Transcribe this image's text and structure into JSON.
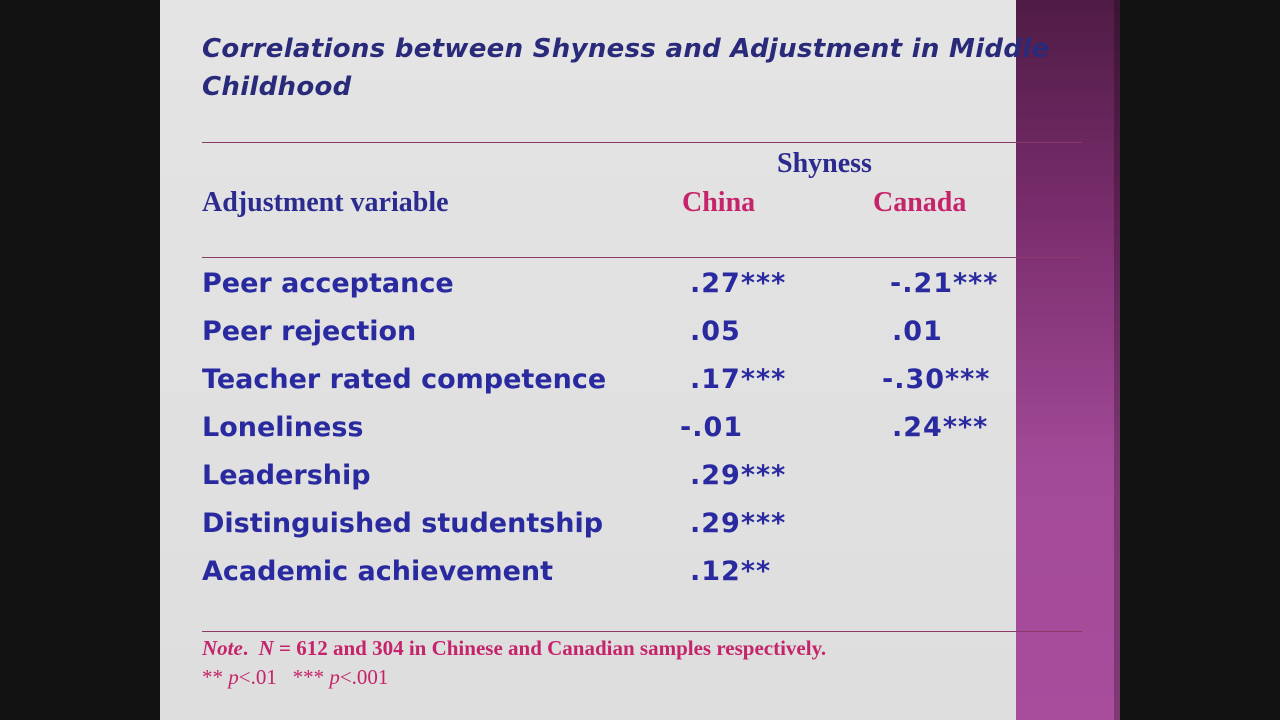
{
  "slide": {
    "title": "Correlations between Shyness and Adjustment in Middle Childhood"
  },
  "table": {
    "group_header": "Shyness",
    "row_header": "Adjustment variable",
    "columns": [
      "China",
      "Canada"
    ],
    "rows": [
      {
        "label": "Peer acceptance",
        "china": ".27***",
        "canada": "-.21***"
      },
      {
        "label": "Peer rejection",
        "china": ".05",
        "canada": ".01"
      },
      {
        "label": "Teacher rated competence",
        "china": ".17***",
        "canada": "-.30***"
      },
      {
        "label": "Loneliness",
        "china": "-.01",
        "canada": ".24***"
      },
      {
        "label": "Leadership",
        "china": ".29***",
        "canada": ""
      },
      {
        "label": "Distinguished studentship",
        "china": ".29***",
        "canada": ""
      },
      {
        "label": "Academic achievement",
        "china": ".12**",
        "canada": ""
      }
    ]
  },
  "note": {
    "prefix": "Note",
    "n_label": "N",
    "line1_text": " = 612 and 304 in Chinese and Canadian samples respectively.",
    "sig1_stars": "** ",
    "sig1_p": "p",
    "sig1_val": "<.01",
    "sig2_stars": "*** ",
    "sig2_p": "p",
    "sig2_val": "<.001"
  },
  "colors": {
    "title": "#2a2a7a",
    "body_text": "#2a2aa0",
    "accent_pink": "#c5246a",
    "band_purple": "#a24a97"
  }
}
